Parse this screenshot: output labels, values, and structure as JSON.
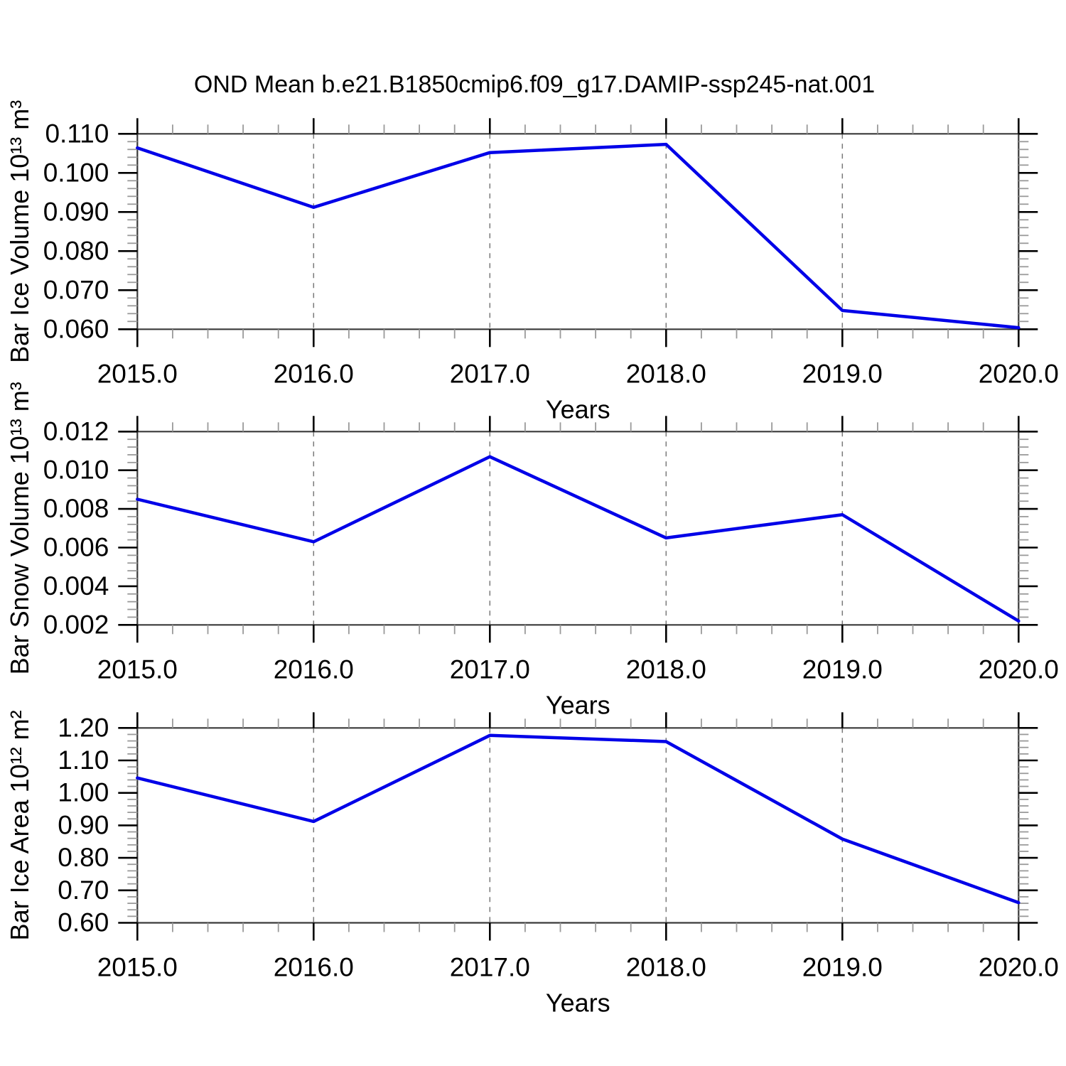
{
  "title": "OND Mean b.e21.B1850cmip6.f09_g17.DAMIP-ssp245-nat.001",
  "chart_data": [
    {
      "type": "line",
      "name": "bar-ice-volume",
      "ylabel": "Bar Ice Volume 10¹³ m³",
      "xlabel": "Years",
      "x": [
        2015,
        2016,
        2017,
        2018,
        2019,
        2020
      ],
      "xticklabels": [
        "2015.0",
        "2016.0",
        "2017.0",
        "2018.0",
        "2019.0",
        "2020.0"
      ],
      "values": [
        0.1064,
        0.0912,
        0.1052,
        0.1073,
        0.0648,
        0.0604
      ],
      "ylim": [
        0.06,
        0.11
      ],
      "ytick_step": 0.01,
      "y_decimals": 3,
      "yminor_per_major": 4,
      "xminor_per_major": 4,
      "grid_x": [
        2016,
        2017,
        2018,
        2019
      ],
      "legend": "none",
      "grid": "vertical-dashed"
    },
    {
      "type": "line",
      "name": "bar-snow-volume",
      "ylabel": "Bar Snow Volume 10¹³ m³",
      "xlabel": "Years",
      "x": [
        2015,
        2016,
        2017,
        2018,
        2019,
        2020
      ],
      "xticklabels": [
        "2015.0",
        "2016.0",
        "2017.0",
        "2018.0",
        "2019.0",
        "2020.0"
      ],
      "values": [
        0.0085,
        0.0063,
        0.0107,
        0.0065,
        0.0077,
        0.0022
      ],
      "ylim": [
        0.002,
        0.012
      ],
      "ytick_step": 0.002,
      "y_decimals": 3,
      "yminor_per_major": 4,
      "xminor_per_major": 4,
      "grid_x": [
        2016,
        2017,
        2018,
        2019
      ],
      "legend": "none",
      "grid": "vertical-dashed"
    },
    {
      "type": "line",
      "name": "bar-ice-area",
      "ylabel": "Bar Ice Area 10¹² m²",
      "xlabel": "Years",
      "x": [
        2015,
        2016,
        2017,
        2018,
        2019,
        2020
      ],
      "xticklabels": [
        "2015.0",
        "2016.0",
        "2017.0",
        "2018.0",
        "2019.0",
        "2020.0"
      ],
      "values": [
        1.046,
        0.912,
        1.177,
        1.158,
        0.858,
        0.662
      ],
      "ylim": [
        0.6,
        1.2
      ],
      "ytick_step": 0.1,
      "y_decimals": 2,
      "yminor_per_major": 4,
      "xminor_per_major": 4,
      "grid_x": [
        2016,
        2017,
        2018,
        2019
      ],
      "legend": "none",
      "grid": "vertical-dashed"
    }
  ],
  "colors": {
    "line": "#0000e8",
    "frame": "#3a3a3a",
    "major_tick": "#000000",
    "minor_tick": "#9a9a9a",
    "grid_dashed": "#7a7a7a",
    "background": "#ffffff",
    "text": "#000000"
  }
}
